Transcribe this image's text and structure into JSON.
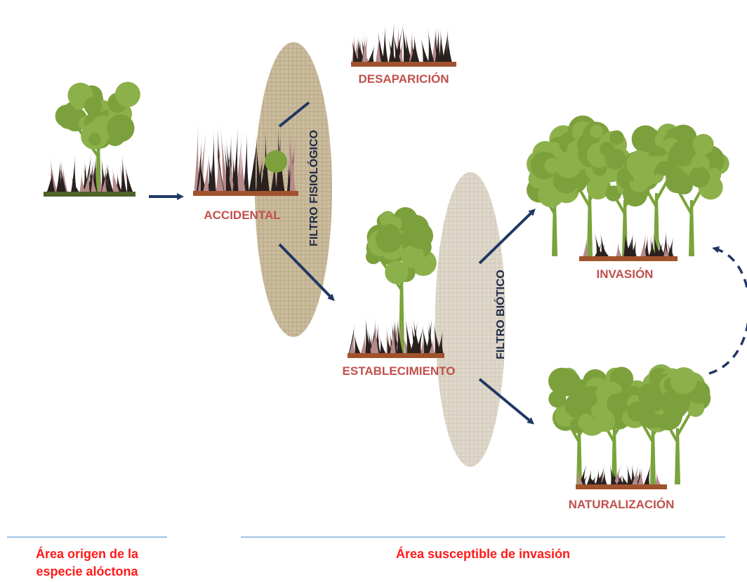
{
  "nodes": [
    {
      "label": "DESAPARICIÓN"
    },
    {
      "label": "ACCIDENTAL"
    },
    {
      "label": "ESTABLECIMIENTO"
    },
    {
      "label": "INVASIÓN"
    },
    {
      "label": "NATURALIZACIÓN"
    }
  ],
  "filters": [
    {
      "label": "FILTRO FISIOLÓGICO"
    },
    {
      "label": "FILTRO BIÓTICO"
    }
  ],
  "areas": [
    {
      "lines": [
        "Área origen de la",
        "especie alóctona"
      ]
    },
    {
      "lines": [
        "Área susceptible de invasión"
      ]
    }
  ]
}
